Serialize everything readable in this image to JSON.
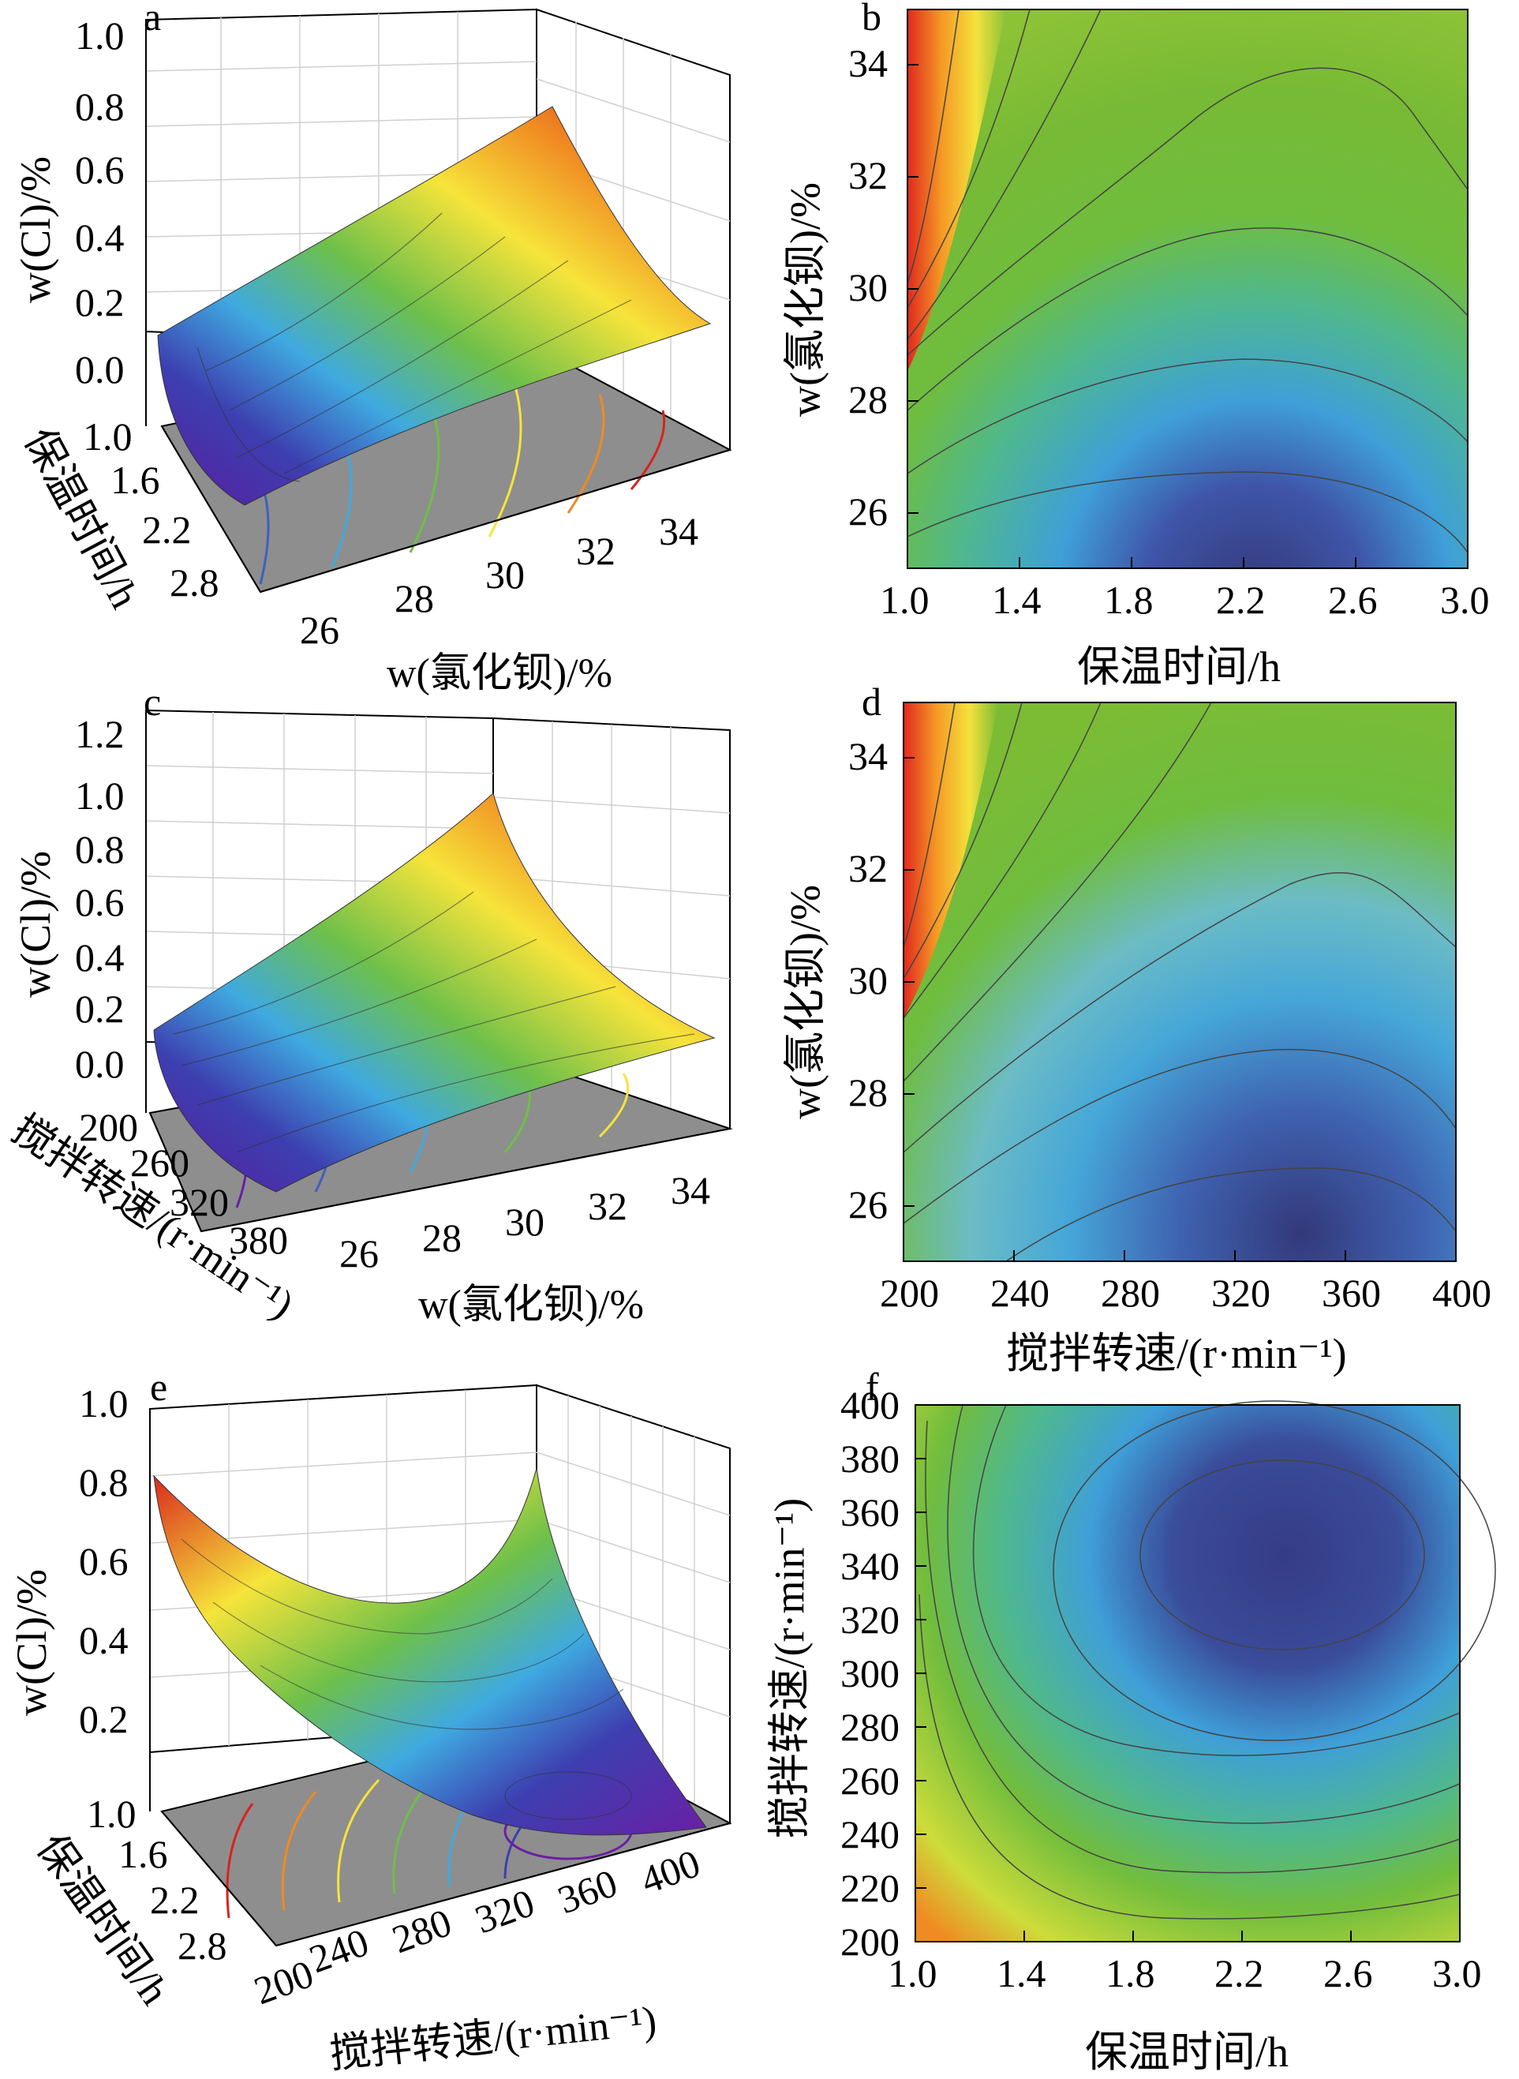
{
  "chart_data": [
    {
      "id": "a",
      "type": "surface3d",
      "zlabel": "w(Cl)/%",
      "xlabel": "w(氯化钡)/%",
      "ylabel": "保温时间/h",
      "x_ticks": [
        "26",
        "28",
        "30",
        "32",
        "34"
      ],
      "y_ticks": [
        "1.0",
        "1.6",
        "2.2",
        "2.8"
      ],
      "z_ticks": [
        "0.0",
        "0.2",
        "0.4",
        "0.6",
        "0.8",
        "1.0"
      ],
      "xlim": [
        25,
        35
      ],
      "ylim": [
        1.0,
        3.0
      ],
      "zlim": [
        0.0,
        1.0
      ],
      "surface_corners": [
        {
          "x": 25,
          "y": 1.0,
          "z": 0.12
        },
        {
          "x": 35,
          "y": 1.0,
          "z": 0.86
        },
        {
          "x": 35,
          "y": 3.0,
          "z": 0.19
        },
        {
          "x": 25,
          "y": 3.0,
          "z": -0.03
        }
      ]
    },
    {
      "id": "b",
      "type": "contour",
      "xlabel": "保温时间/h",
      "ylabel": "w(氯化钡)/%",
      "x_ticks": [
        "1.0",
        "1.4",
        "1.8",
        "2.2",
        "2.6",
        "3.0"
      ],
      "y_ticks": [
        "26",
        "28",
        "30",
        "32",
        "34"
      ],
      "xlim": [
        1.0,
        3.0
      ],
      "ylim": [
        25,
        35
      ],
      "colormap": "rainbow (red high, violet low)"
    },
    {
      "id": "c",
      "type": "surface3d",
      "zlabel": "w(Cl)/%",
      "xlabel": "w(氯化钡)/%",
      "ylabel": "搅拌转速/(r·min⁻¹)",
      "x_ticks": [
        "26",
        "28",
        "30",
        "32",
        "34"
      ],
      "y_ticks": [
        "200",
        "260",
        "320",
        "380"
      ],
      "z_ticks": [
        "0.0",
        "0.2",
        "0.4",
        "0.6",
        "0.8",
        "1.0",
        "1.2"
      ],
      "xlim": [
        25,
        35
      ],
      "ylim": [
        200,
        400
      ],
      "zlim": [
        0.0,
        1.2
      ],
      "surface_corners": [
        {
          "x": 25,
          "y": 200,
          "z": 0.17
        },
        {
          "x": 35,
          "y": 200,
          "z": 1.05
        },
        {
          "x": 35,
          "y": 400,
          "z": 0.1
        },
        {
          "x": 25,
          "y": 400,
          "z": -0.04
        }
      ]
    },
    {
      "id": "d",
      "type": "contour",
      "xlabel": "搅拌转速/(r·min⁻¹)",
      "ylabel": "w(氯化钡)/%",
      "x_ticks": [
        "200",
        "240",
        "280",
        "320",
        "360",
        "400"
      ],
      "y_ticks": [
        "26",
        "28",
        "30",
        "32",
        "34"
      ],
      "xlim": [
        200,
        400
      ],
      "ylim": [
        25,
        35
      ],
      "colormap": "rainbow (red high, violet low)"
    },
    {
      "id": "e",
      "type": "surface3d",
      "zlabel": "w(Cl)/%",
      "xlabel": "搅拌转速/(r·min⁻¹)",
      "ylabel": "保温时间/h",
      "x_ticks": [
        "200",
        "240",
        "280",
        "320",
        "360",
        "400"
      ],
      "y_ticks": [
        "1.0",
        "1.6",
        "2.2",
        "2.8"
      ],
      "z_ticks": [
        "0.2",
        "0.4",
        "0.6",
        "0.8",
        "1.0"
      ],
      "xlim": [
        200,
        400
      ],
      "ylim": [
        1.0,
        3.0
      ],
      "zlim": [
        0.0,
        1.0
      ],
      "surface_corners": [
        {
          "x": 200,
          "y": 1.0,
          "z": 0.82
        },
        {
          "x": 400,
          "y": 1.0,
          "z": 0.45
        },
        {
          "x": 400,
          "y": 3.0,
          "z": 0.05
        },
        {
          "x": 200,
          "y": 3.0,
          "z": 0.5
        }
      ]
    },
    {
      "id": "f",
      "type": "contour",
      "xlabel": "保温时间/h",
      "ylabel": "搅拌转速/(r·min⁻¹)",
      "x_ticks": [
        "1.0",
        "1.4",
        "1.8",
        "2.2",
        "2.6",
        "3.0"
      ],
      "y_ticks": [
        "200",
        "220",
        "240",
        "260",
        "280",
        "300",
        "320",
        "340",
        "360",
        "380",
        "400"
      ],
      "xlim": [
        1.0,
        3.0
      ],
      "ylim": [
        200,
        400
      ],
      "colormap": "rainbow (red high, violet low)"
    }
  ],
  "panel_letters": {
    "a": "a",
    "b": "b",
    "c": "c",
    "d": "d",
    "e": "e",
    "f": "f"
  }
}
